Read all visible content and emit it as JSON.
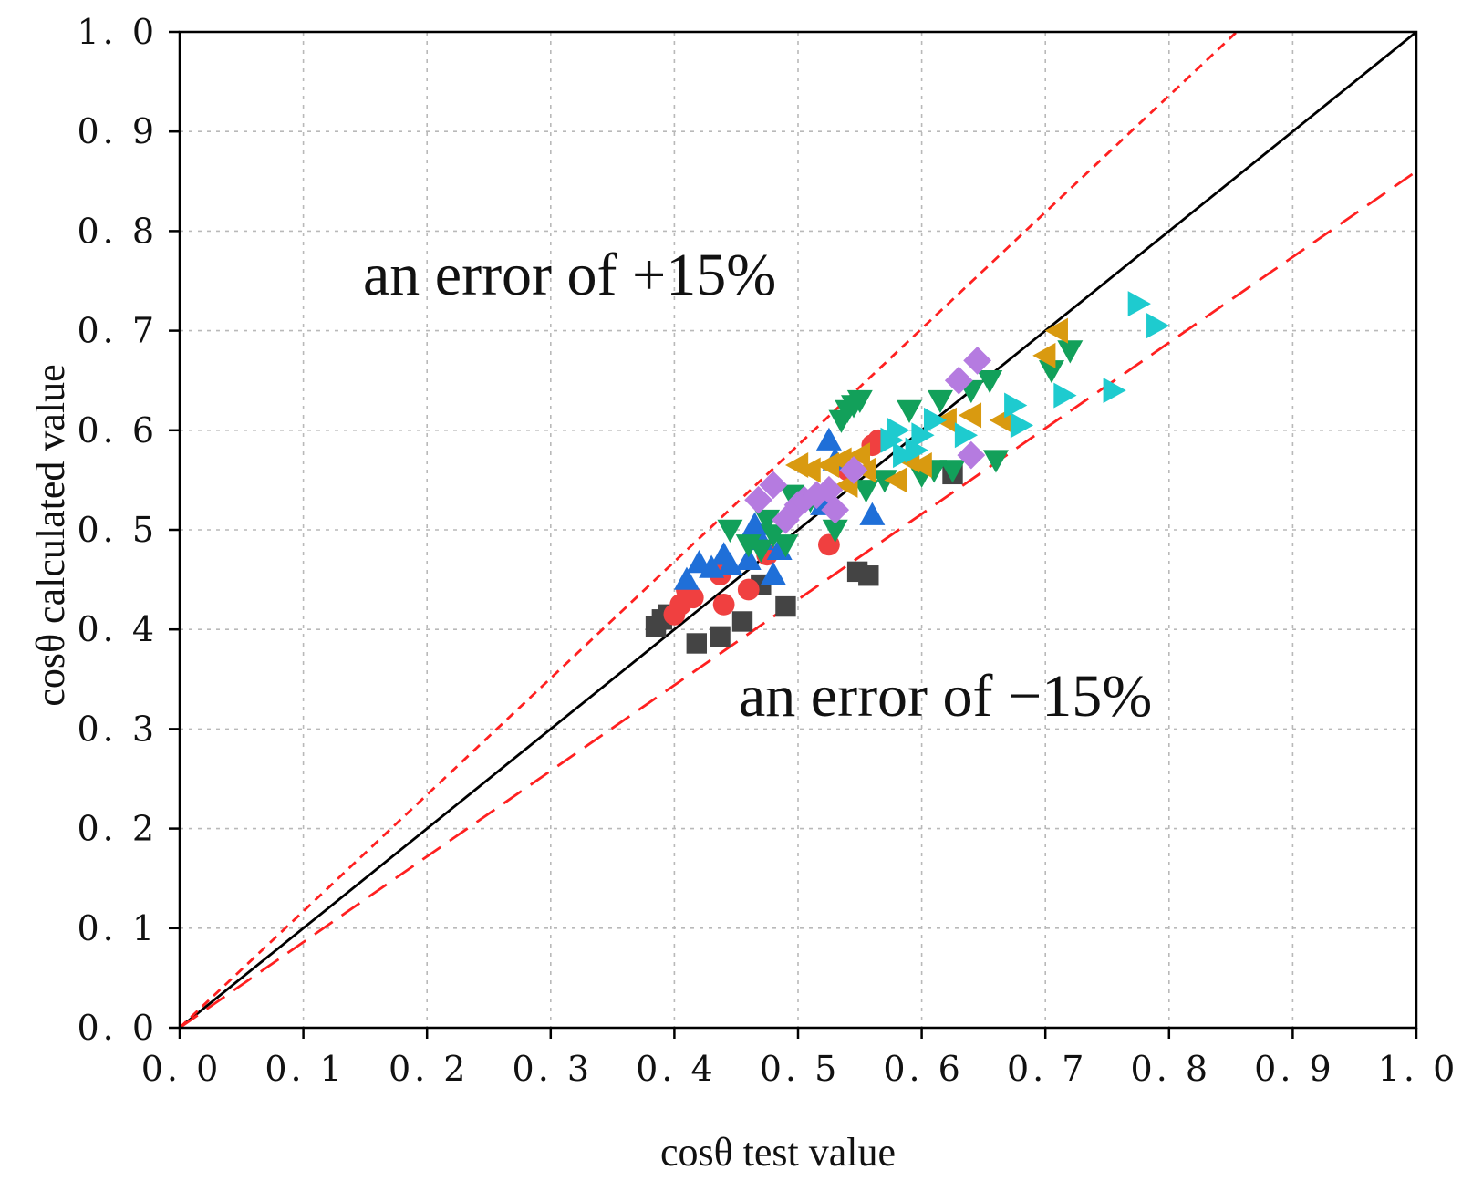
{
  "chart_data": {
    "type": "scatter",
    "xlabel": "cosθ test value",
    "ylabel": "cosθ calculated value",
    "xlim": [
      0,
      1
    ],
    "ylim": [
      0,
      1
    ],
    "grid": true,
    "x_ticks": [
      "0. 0",
      "0. 1",
      "0. 2",
      "0. 3",
      "0. 4",
      "0. 5",
      "0. 6",
      "0. 7",
      "0. 8",
      "0. 9",
      "1. 0"
    ],
    "y_ticks": [
      "0. 0",
      "0. 1",
      "0. 2",
      "0. 3",
      "0. 4",
      "0. 5",
      "0. 6",
      "0. 7",
      "0. 8",
      "0. 9",
      "1. 0"
    ],
    "reference_lines": [
      {
        "name": "y = x",
        "slope": 1.0,
        "color": "#000000",
        "style": "solid"
      },
      {
        "name": "+15% error",
        "slope": 1.17,
        "color": "#ff2020",
        "style": "dashed"
      },
      {
        "name": "-15% error",
        "slope": 0.86,
        "color": "#ff2020",
        "style": "dashed"
      }
    ],
    "annotations": [
      {
        "text": "an error of +15%"
      },
      {
        "text": "an error of −15%"
      }
    ],
    "series": [
      {
        "name": "series-square",
        "marker": "square",
        "color": "#444444",
        "points": [
          [
            0.385,
            0.403
          ],
          [
            0.39,
            0.41
          ],
          [
            0.395,
            0.415
          ],
          [
            0.418,
            0.386
          ],
          [
            0.437,
            0.393
          ],
          [
            0.455,
            0.408
          ],
          [
            0.47,
            0.445
          ],
          [
            0.49,
            0.423
          ],
          [
            0.548,
            0.458
          ],
          [
            0.557,
            0.454
          ],
          [
            0.625,
            0.556
          ]
        ]
      },
      {
        "name": "series-circle",
        "marker": "circle",
        "color": "#f04040",
        "points": [
          [
            0.4,
            0.415
          ],
          [
            0.405,
            0.425
          ],
          [
            0.41,
            0.44
          ],
          [
            0.415,
            0.432
          ],
          [
            0.437,
            0.455
          ],
          [
            0.44,
            0.425
          ],
          [
            0.46,
            0.44
          ],
          [
            0.475,
            0.475
          ],
          [
            0.525,
            0.485
          ],
          [
            0.54,
            0.56
          ],
          [
            0.56,
            0.585
          ],
          [
            0.565,
            0.59
          ]
        ]
      },
      {
        "name": "series-triangle-up",
        "marker": "triangle-up",
        "color": "#1f6fd8",
        "points": [
          [
            0.41,
            0.45
          ],
          [
            0.42,
            0.467
          ],
          [
            0.43,
            0.462
          ],
          [
            0.44,
            0.475
          ],
          [
            0.445,
            0.465
          ],
          [
            0.46,
            0.47
          ],
          [
            0.465,
            0.505
          ],
          [
            0.47,
            0.49
          ],
          [
            0.48,
            0.455
          ],
          [
            0.485,
            0.48
          ],
          [
            0.52,
            0.525
          ],
          [
            0.525,
            0.59
          ],
          [
            0.53,
            0.57
          ],
          [
            0.56,
            0.515
          ]
        ]
      },
      {
        "name": "series-triangle-down",
        "marker": "triangle-down",
        "color": "#12a05a",
        "points": [
          [
            0.445,
            0.5
          ],
          [
            0.46,
            0.485
          ],
          [
            0.47,
            0.48
          ],
          [
            0.475,
            0.51
          ],
          [
            0.48,
            0.495
          ],
          [
            0.49,
            0.485
          ],
          [
            0.495,
            0.535
          ],
          [
            0.51,
            0.53
          ],
          [
            0.53,
            0.5
          ],
          [
            0.535,
            0.61
          ],
          [
            0.54,
            0.62
          ],
          [
            0.545,
            0.625
          ],
          [
            0.55,
            0.63
          ],
          [
            0.555,
            0.54
          ],
          [
            0.57,
            0.55
          ],
          [
            0.59,
            0.62
          ],
          [
            0.6,
            0.555
          ],
          [
            0.61,
            0.56
          ],
          [
            0.615,
            0.63
          ],
          [
            0.625,
            0.56
          ],
          [
            0.64,
            0.64
          ],
          [
            0.655,
            0.65
          ],
          [
            0.66,
            0.57
          ],
          [
            0.705,
            0.66
          ],
          [
            0.72,
            0.68
          ]
        ]
      },
      {
        "name": "series-triangle-left",
        "marker": "triangle-left",
        "color": "#d99a10",
        "points": [
          [
            0.5,
            0.565
          ],
          [
            0.51,
            0.56
          ],
          [
            0.525,
            0.565
          ],
          [
            0.535,
            0.57
          ],
          [
            0.54,
            0.545
          ],
          [
            0.55,
            0.575
          ],
          [
            0.555,
            0.56
          ],
          [
            0.58,
            0.55
          ],
          [
            0.59,
            0.57
          ],
          [
            0.6,
            0.565
          ],
          [
            0.62,
            0.61
          ],
          [
            0.64,
            0.615
          ],
          [
            0.665,
            0.61
          ],
          [
            0.7,
            0.675
          ],
          [
            0.71,
            0.7
          ]
        ]
      },
      {
        "name": "series-diamond",
        "marker": "diamond",
        "color": "#b57be0",
        "points": [
          [
            0.468,
            0.53
          ],
          [
            0.48,
            0.545
          ],
          [
            0.49,
            0.51
          ],
          [
            0.5,
            0.525
          ],
          [
            0.505,
            0.53
          ],
          [
            0.515,
            0.535
          ],
          [
            0.525,
            0.54
          ],
          [
            0.53,
            0.52
          ],
          [
            0.545,
            0.56
          ],
          [
            0.63,
            0.65
          ],
          [
            0.64,
            0.575
          ],
          [
            0.645,
            0.67
          ]
        ]
      },
      {
        "name": "series-triangle-right",
        "marker": "triangle-right",
        "color": "#1ecbcf",
        "points": [
          [
            0.575,
            0.59
          ],
          [
            0.58,
            0.6
          ],
          [
            0.585,
            0.575
          ],
          [
            0.595,
            0.58
          ],
          [
            0.6,
            0.595
          ],
          [
            0.61,
            0.61
          ],
          [
            0.635,
            0.595
          ],
          [
            0.675,
            0.625
          ],
          [
            0.68,
            0.605
          ],
          [
            0.715,
            0.635
          ],
          [
            0.755,
            0.64
          ],
          [
            0.775,
            0.727
          ],
          [
            0.79,
            0.705
          ]
        ]
      }
    ]
  }
}
